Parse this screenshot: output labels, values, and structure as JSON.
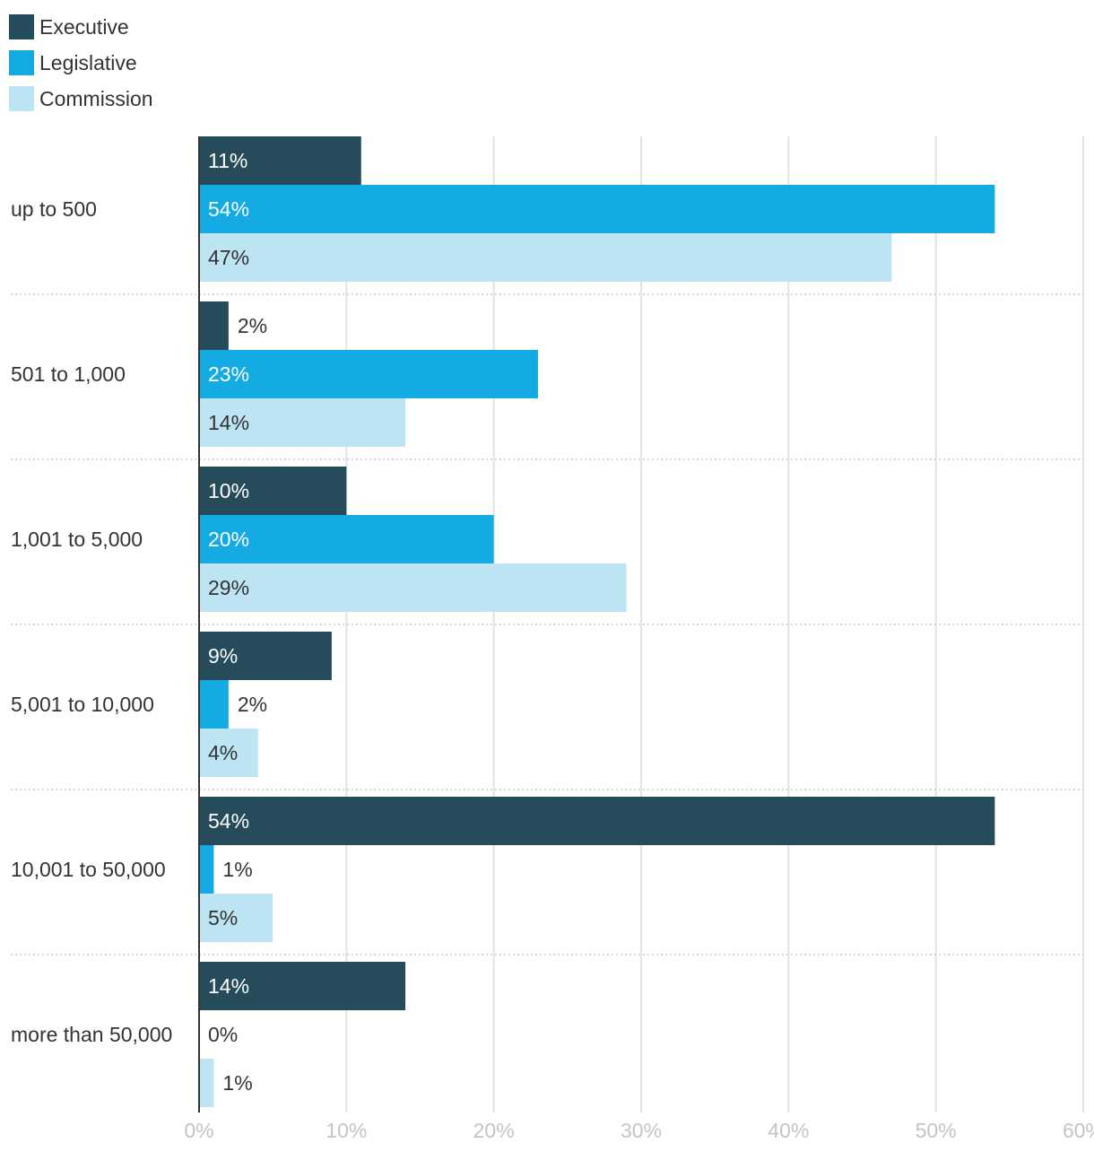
{
  "chart_data": {
    "type": "bar",
    "orientation": "horizontal",
    "categories": [
      "up to 500",
      "501 to 1,000",
      "1,001 to 5,000",
      "5,001 to 10,000",
      "10,001 to 50,000",
      "more than 50,000"
    ],
    "series": [
      {
        "name": "Executive",
        "color": "#264b5a",
        "label_color": "#ffffff",
        "values": [
          11,
          2,
          10,
          9,
          54,
          14
        ]
      },
      {
        "name": "Legislative",
        "color": "#14abe3",
        "label_color": "#ffffff",
        "values": [
          54,
          23,
          20,
          2,
          1,
          0
        ]
      },
      {
        "name": "Commission",
        "color": "#bce4f2",
        "label_color": "#333333",
        "values": [
          47,
          14,
          29,
          4,
          5,
          1
        ]
      }
    ],
    "value_suffix": "%",
    "xlim": [
      0,
      60
    ],
    "xticks": [
      "0%",
      "10%",
      "20%",
      "30%",
      "40%",
      "50%",
      "60%"
    ],
    "grid": true,
    "legend_position": "top-left",
    "title": "",
    "xlabel": "",
    "ylabel": ""
  }
}
